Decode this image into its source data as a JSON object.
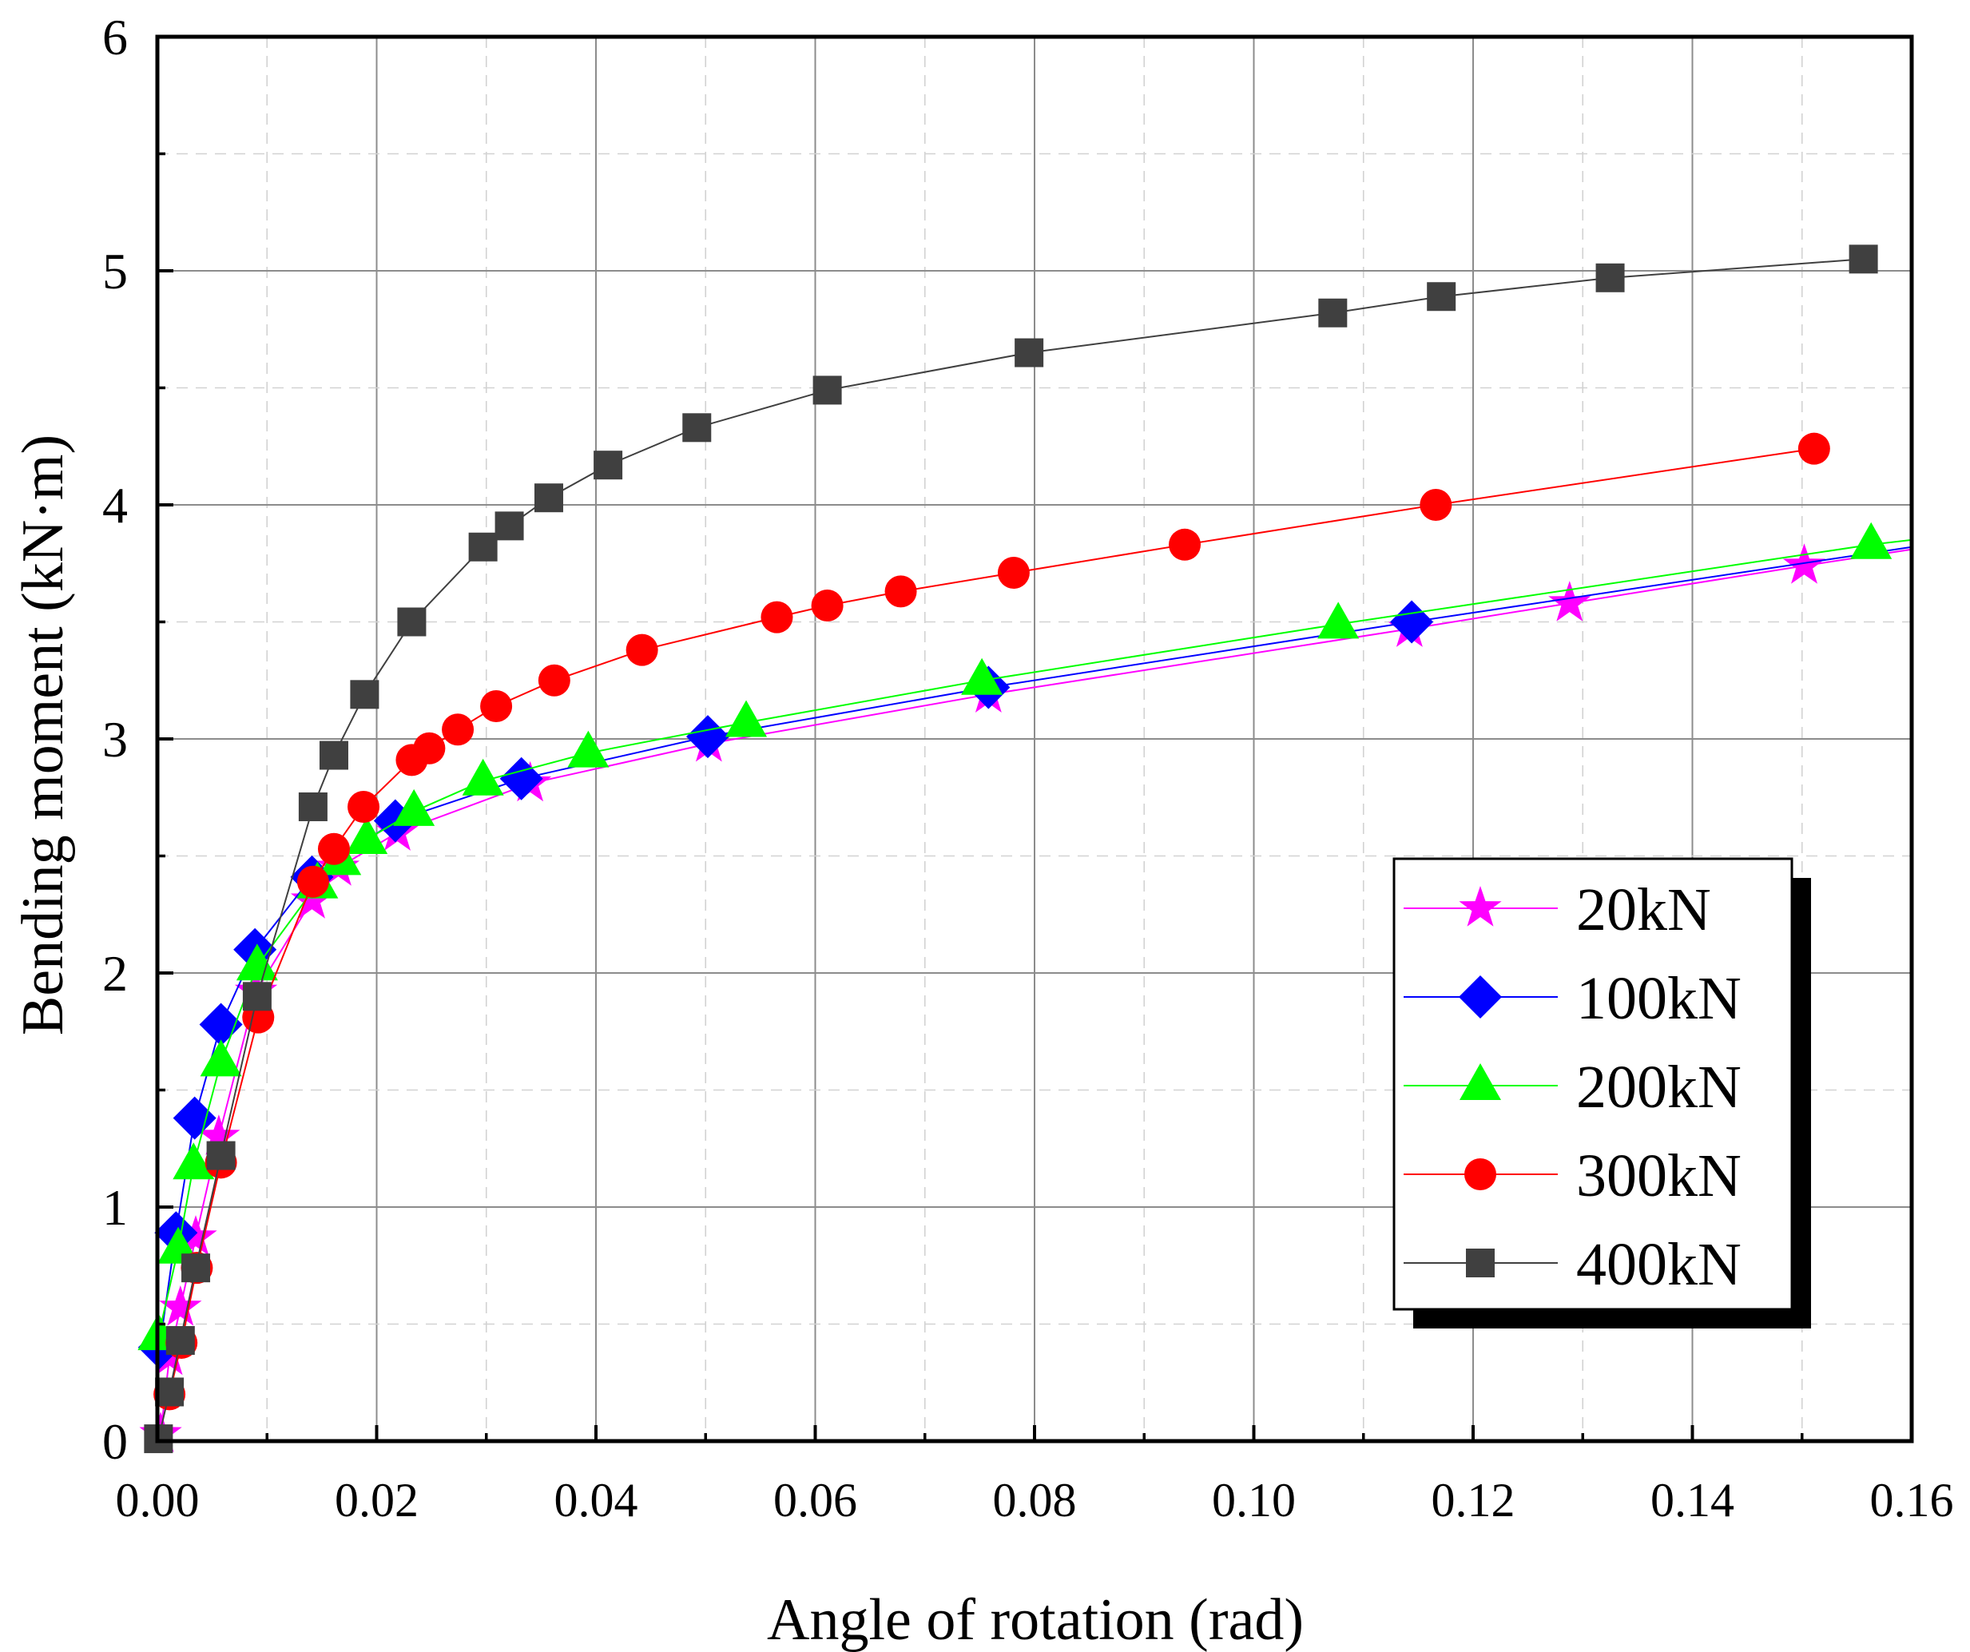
{
  "chart_data": {
    "type": "line",
    "title": "",
    "xlabel": "Angle of rotation (rad)",
    "ylabel": "Bending moment (kN·m)",
    "xlim": [
      0,
      0.16
    ],
    "ylim": [
      0,
      6
    ],
    "xticks": [
      "0.00",
      "0.02",
      "0.04",
      "0.06",
      "0.08",
      "0.10",
      "0.12",
      "0.14",
      "0.16"
    ],
    "yticks": [
      "0",
      "1",
      "2",
      "3",
      "4",
      "5",
      "6"
    ],
    "grid": true,
    "legend_position": "bottom-right",
    "series": [
      {
        "name": "20kN",
        "color": "#ff00ff",
        "marker": "star",
        "points": [
          [
            0.0003,
            0.03
          ],
          [
            0.0011,
            0.36
          ],
          [
            0.0021,
            0.57
          ],
          [
            0.0035,
            0.87
          ],
          [
            0.0056,
            1.3
          ],
          [
            0.009,
            1.92
          ],
          [
            0.0141,
            2.31
          ],
          [
            0.0165,
            2.45
          ],
          [
            0.0219,
            2.6
          ],
          [
            0.034,
            2.81
          ],
          [
            0.0503,
            2.98
          ],
          [
            0.0758,
            3.19
          ],
          [
            0.1142,
            3.47
          ],
          [
            0.1288,
            3.58
          ],
          [
            0.1502,
            3.74
          ],
          [
            0.16,
            3.81
          ]
        ]
      },
      {
        "name": "100kN",
        "color": "#0000ff",
        "marker": "diamond",
        "points": [
          [
            0.0002,
            0.4
          ],
          [
            0.0017,
            0.89
          ],
          [
            0.0034,
            1.38
          ],
          [
            0.0058,
            1.78
          ],
          [
            0.0089,
            2.1
          ],
          [
            0.0141,
            2.41
          ],
          [
            0.0217,
            2.65
          ],
          [
            0.0332,
            2.83
          ],
          [
            0.0502,
            3.01
          ],
          [
            0.0758,
            3.22
          ],
          [
            0.1144,
            3.5
          ],
          [
            0.16,
            3.82
          ]
        ]
      },
      {
        "name": "200kN",
        "color": "#00ff00",
        "marker": "triangle",
        "points": [
          [
            0.0001,
            0.45
          ],
          [
            0.0019,
            0.82
          ],
          [
            0.0033,
            1.18
          ],
          [
            0.0058,
            1.62
          ],
          [
            0.0091,
            2.03
          ],
          [
            0.0146,
            2.38
          ],
          [
            0.0167,
            2.48
          ],
          [
            0.0191,
            2.57
          ],
          [
            0.0234,
            2.69
          ],
          [
            0.0297,
            2.82
          ],
          [
            0.0393,
            2.94
          ],
          [
            0.0537,
            3.07
          ],
          [
            0.0752,
            3.25
          ],
          [
            0.1077,
            3.49
          ],
          [
            0.1563,
            3.83
          ],
          [
            0.16,
            3.85
          ]
        ]
      },
      {
        "name": "300kN",
        "color": "#ff0000",
        "marker": "circle",
        "points": [
          [
            0.0011,
            0.2
          ],
          [
            0.0022,
            0.42
          ],
          [
            0.0036,
            0.74
          ],
          [
            0.0058,
            1.19
          ],
          [
            0.0092,
            1.81
          ],
          [
            0.0142,
            2.39
          ],
          [
            0.0161,
            2.53
          ],
          [
            0.0188,
            2.71
          ],
          [
            0.0232,
            2.91
          ],
          [
            0.0248,
            2.96
          ],
          [
            0.0274,
            3.04
          ],
          [
            0.0309,
            3.14
          ],
          [
            0.0362,
            3.25
          ],
          [
            0.0442,
            3.38
          ],
          [
            0.0565,
            3.52
          ],
          [
            0.0611,
            3.57
          ],
          [
            0.0678,
            3.63
          ],
          [
            0.0781,
            3.71
          ],
          [
            0.0937,
            3.83
          ],
          [
            0.1166,
            4.0
          ],
          [
            0.1511,
            4.24
          ]
        ]
      },
      {
        "name": "400kN",
        "color": "#404040",
        "marker": "square",
        "points": [
          [
            0.0001,
            0.01
          ],
          [
            0.0011,
            0.21
          ],
          [
            0.0021,
            0.43
          ],
          [
            0.0035,
            0.74
          ],
          [
            0.0058,
            1.22
          ],
          [
            0.0091,
            1.9
          ],
          [
            0.0142,
            2.71
          ],
          [
            0.0161,
            2.93
          ],
          [
            0.0189,
            3.19
          ],
          [
            0.0232,
            3.5
          ],
          [
            0.0297,
            3.82
          ],
          [
            0.0321,
            3.91
          ],
          [
            0.0357,
            4.03
          ],
          [
            0.0411,
            4.17
          ],
          [
            0.0492,
            4.33
          ],
          [
            0.0611,
            4.49
          ],
          [
            0.0795,
            4.65
          ],
          [
            0.1072,
            4.82
          ],
          [
            0.1171,
            4.89
          ],
          [
            0.1325,
            4.97
          ],
          [
            0.1556,
            5.05
          ]
        ]
      }
    ]
  }
}
